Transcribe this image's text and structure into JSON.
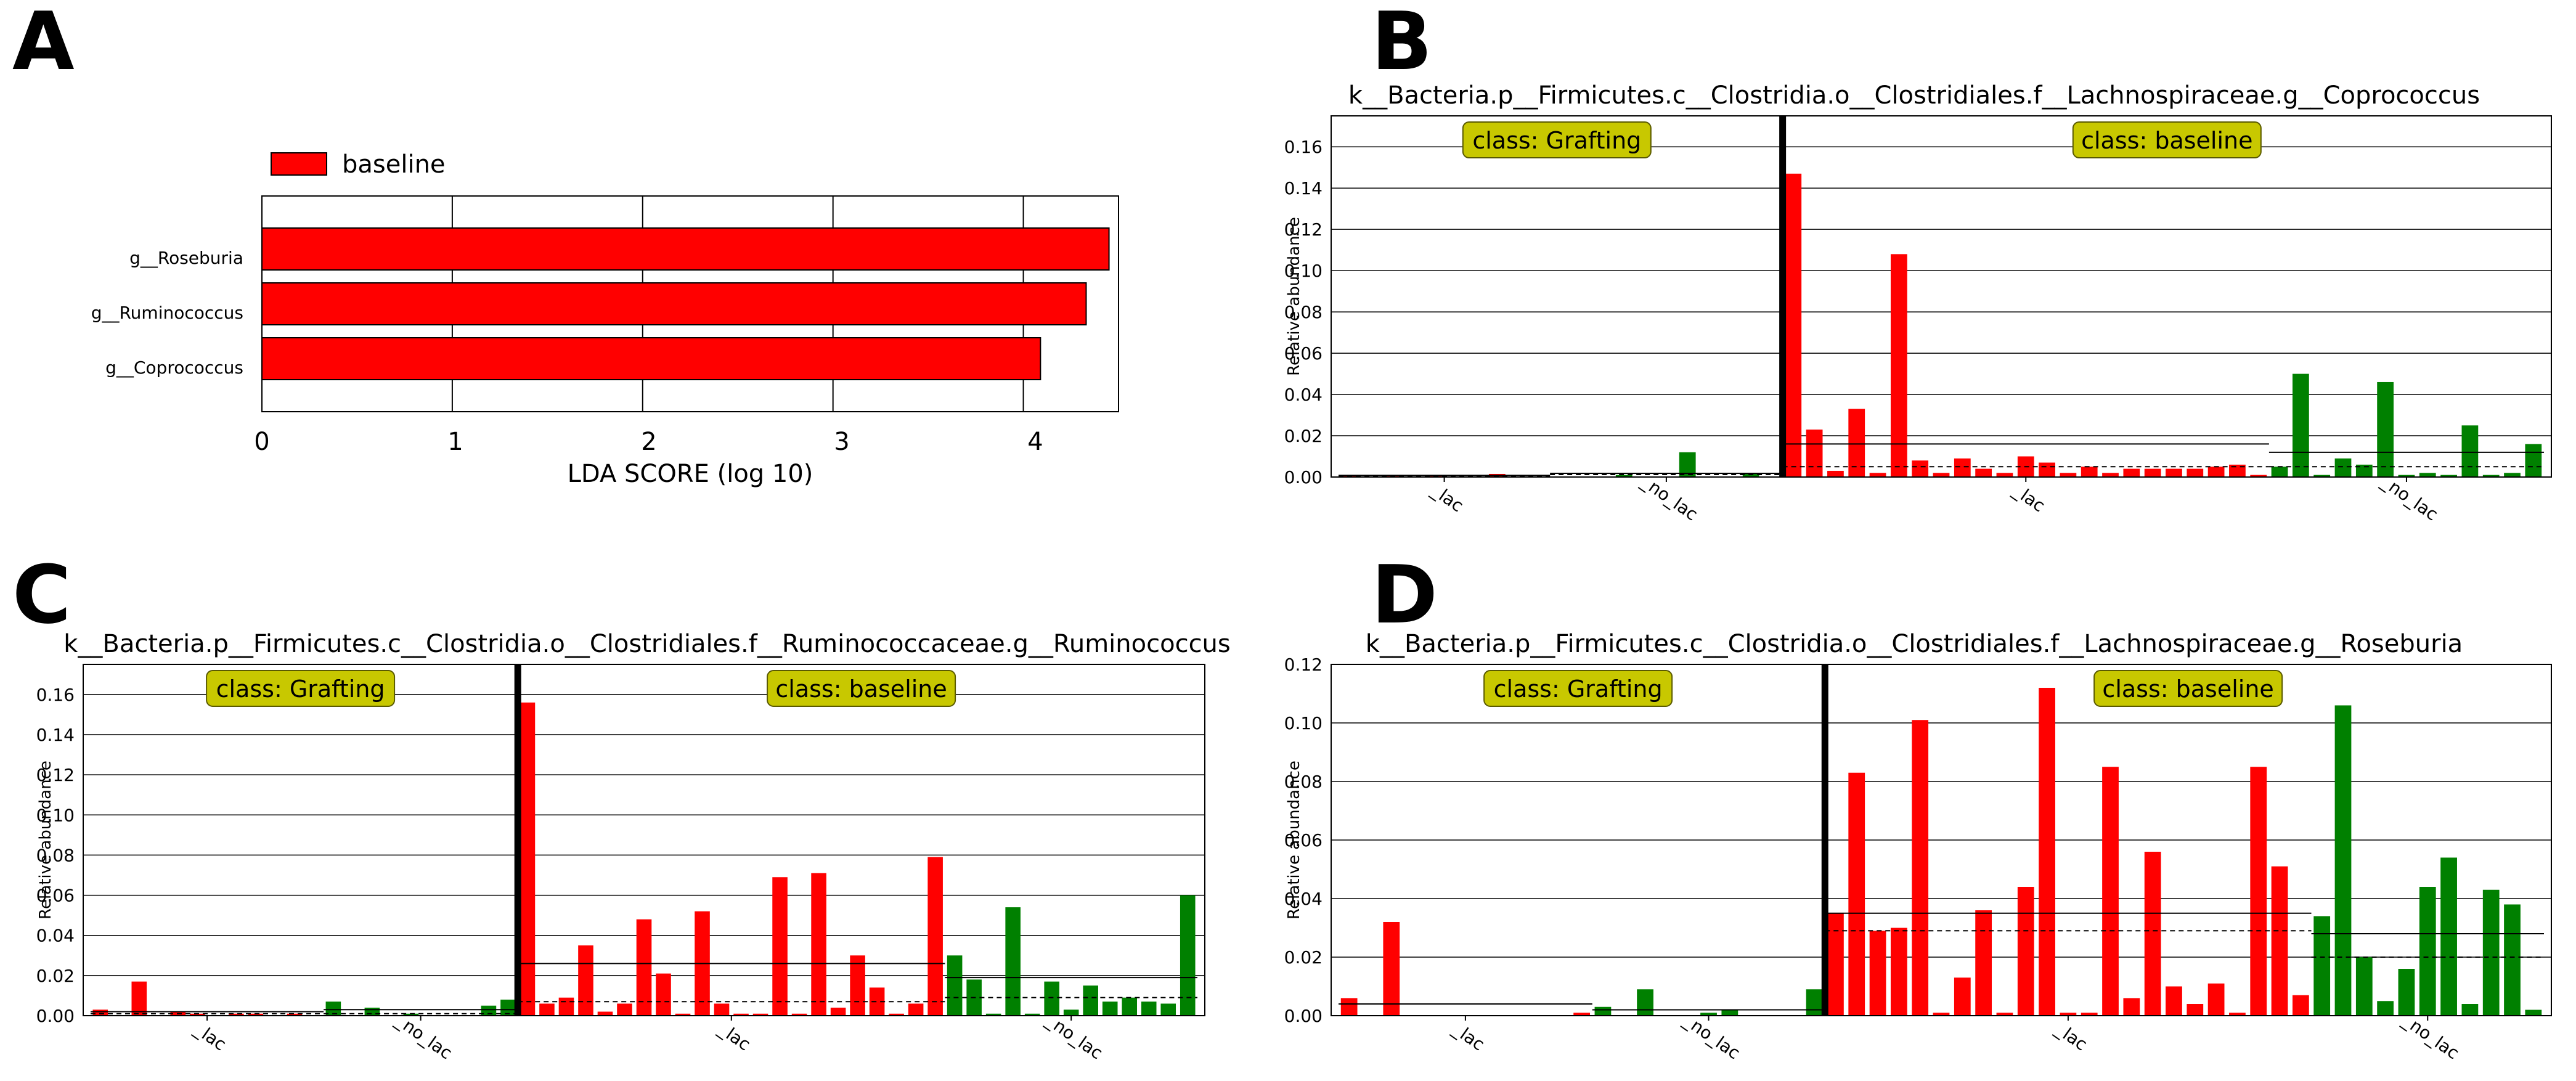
{
  "panels": {
    "A": {
      "label": "A"
    },
    "B": {
      "label": "B"
    },
    "C": {
      "label": "C"
    },
    "D": {
      "label": "D"
    }
  },
  "colors": {
    "baseline": "#ff0000",
    "grafting": "#008000",
    "class_box": "#c8c800"
  },
  "chart_data": [
    {
      "id": "A",
      "type": "bar",
      "orientation": "horizontal",
      "title": "",
      "xlabel": "LDA SCORE (log 10)",
      "ylabel": "",
      "xlim": [
        0,
        4.5
      ],
      "xticks": [
        "0",
        "1",
        "2",
        "3",
        "4"
      ],
      "categories": [
        "g__Roseburia",
        "g__Ruminococcus",
        "g__Coprococcus"
      ],
      "values": [
        4.45,
        4.33,
        4.09
      ],
      "legend": {
        "entries": [
          "baseline"
        ],
        "position": "top-left"
      },
      "grid": true
    },
    {
      "id": "B",
      "type": "bar",
      "title": "k__Bacteria.p__Firmicutes.c__Clostridia.o__Clostridiales.f__Lachnospiraceae.g__Coprococcus",
      "ylabel": "Relative abundance",
      "ylim": [
        0,
        0.175
      ],
      "yticks": [
        "0.00",
        "0.02",
        "0.04",
        "0.06",
        "0.08",
        "0.10",
        "0.12",
        "0.14",
        "0.16"
      ],
      "classes": [
        "class: Grafting",
        "class: baseline"
      ],
      "subclass_labels": [
        "_lac",
        "_no_lac",
        "_lac",
        "_no_lac"
      ],
      "groups": [
        {
          "class": "Grafting",
          "subclass": "_lac",
          "color": "red",
          "mean": 0.0008,
          "median": 0.0004,
          "values": [
            0.0008,
            0,
            0.0005,
            0,
            0.0006,
            0,
            0,
            0.0015,
            0,
            0
          ]
        },
        {
          "class": "Grafting",
          "subclass": "_no_lac",
          "color": "green",
          "mean": 0.0018,
          "median": 0.0012,
          "values": [
            0,
            0,
            0,
            0.001,
            0,
            0,
            0.012,
            0,
            0,
            0.002,
            0
          ]
        },
        {
          "class": "baseline",
          "subclass": "_lac",
          "color": "red",
          "mean": 0.016,
          "median": 0.005,
          "values": [
            0.147,
            0.023,
            0.003,
            0.033,
            0.002,
            0.108,
            0.008,
            0.002,
            0.009,
            0.004,
            0.002,
            0.01,
            0.007,
            0.002,
            0.005,
            0.002,
            0.004,
            0.004,
            0.004,
            0.004,
            0.005,
            0.006,
            0.001
          ]
        },
        {
          "class": "baseline",
          "subclass": "_no_lac",
          "color": "green",
          "mean": 0.012,
          "median": 0.005,
          "values": [
            0.005,
            0.05,
            0.001,
            0.009,
            0.006,
            0.046,
            0.001,
            0.002,
            0.001,
            0.025,
            0.001,
            0.002,
            0.016
          ]
        }
      ]
    },
    {
      "id": "C",
      "type": "bar",
      "title": "k__Bacteria.p__Firmicutes.c__Clostridia.o__Clostridiales.f__Ruminococcaceae.g__Ruminococcus",
      "ylabel": "Relative abundance",
      "ylim": [
        0,
        0.175
      ],
      "yticks": [
        "0.00",
        "0.02",
        "0.04",
        "0.06",
        "0.08",
        "0.10",
        "0.12",
        "0.14",
        "0.16"
      ],
      "classes": [
        "class: Grafting",
        "class: baseline"
      ],
      "subclass_labels": [
        "_lac",
        "_no_lac",
        "_lac",
        "_no_lac"
      ],
      "groups": [
        {
          "class": "Grafting",
          "subclass": "_lac",
          "color": "red",
          "mean": 0.002,
          "median": 0.001,
          "values": [
            0.003,
            0,
            0.017,
            0,
            0.002,
            0.001,
            0,
            0.001,
            0.001,
            0,
            0.001,
            0
          ]
        },
        {
          "class": "Grafting",
          "subclass": "_no_lac",
          "color": "green",
          "mean": 0.003,
          "median": 0.001,
          "values": [
            0.007,
            0,
            0.004,
            0,
            0.001,
            0,
            0,
            0,
            0.005,
            0.008
          ]
        },
        {
          "class": "baseline",
          "subclass": "_lac",
          "color": "red",
          "mean": 0.026,
          "median": 0.007,
          "values": [
            0.156,
            0.006,
            0.009,
            0.035,
            0.002,
            0.006,
            0.048,
            0.021,
            0.001,
            0.052,
            0.006,
            0.001,
            0.001,
            0.069,
            0.001,
            0.071,
            0.004,
            0.03,
            0.014,
            0.001,
            0.006,
            0.079
          ]
        },
        {
          "class": "baseline",
          "subclass": "_no_lac",
          "color": "green",
          "mean": 0.019,
          "median": 0.009,
          "values": [
            0.03,
            0.018,
            0.001,
            0.054,
            0.001,
            0.017,
            0.003,
            0.015,
            0.007,
            0.009,
            0.007,
            0.006,
            0.06
          ]
        }
      ]
    },
    {
      "id": "D",
      "type": "bar",
      "title": "k__Bacteria.p__Firmicutes.c__Clostridia.o__Clostridiales.f__Lachnospiraceae.g__Roseburia",
      "ylabel": "Relative abundance",
      "ylim": [
        0,
        0.12
      ],
      "yticks": [
        "0.00",
        "0.02",
        "0.04",
        "0.06",
        "0.08",
        "0.10",
        "0.12"
      ],
      "classes": [
        "class: Grafting",
        "class: baseline"
      ],
      "subclass_labels": [
        "_lac",
        "_no_lac",
        "_lac",
        "_no_lac"
      ],
      "groups": [
        {
          "class": "Grafting",
          "subclass": "_lac",
          "color": "red",
          "mean": 0.004,
          "median": 0.0,
          "values": [
            0.006,
            0,
            0.032,
            0,
            0,
            0,
            0,
            0,
            0,
            0,
            0,
            0.001
          ]
        },
        {
          "class": "Grafting",
          "subclass": "_no_lac",
          "color": "green",
          "mean": 0.002,
          "median": 0.0,
          "values": [
            0.003,
            0,
            0.009,
            0,
            0,
            0.001,
            0.002,
            0,
            0,
            0,
            0.009
          ]
        },
        {
          "class": "baseline",
          "subclass": "_lac",
          "color": "red",
          "mean": 0.035,
          "median": 0.029,
          "values": [
            0.035,
            0.083,
            0.029,
            0.03,
            0.101,
            0.001,
            0.013,
            0.036,
            0.001,
            0.044,
            0.112,
            0.001,
            0.001,
            0.085,
            0.006,
            0.056,
            0.01,
            0.004,
            0.011,
            0.001,
            0.085,
            0.051,
            0.007
          ]
        },
        {
          "class": "baseline",
          "subclass": "_no_lac",
          "color": "green",
          "mean": 0.028,
          "median": 0.02,
          "values": [
            0.034,
            0.106,
            0.02,
            0.005,
            0.016,
            0.044,
            0.054,
            0.004,
            0.043,
            0.038,
            0.002
          ]
        }
      ]
    }
  ]
}
